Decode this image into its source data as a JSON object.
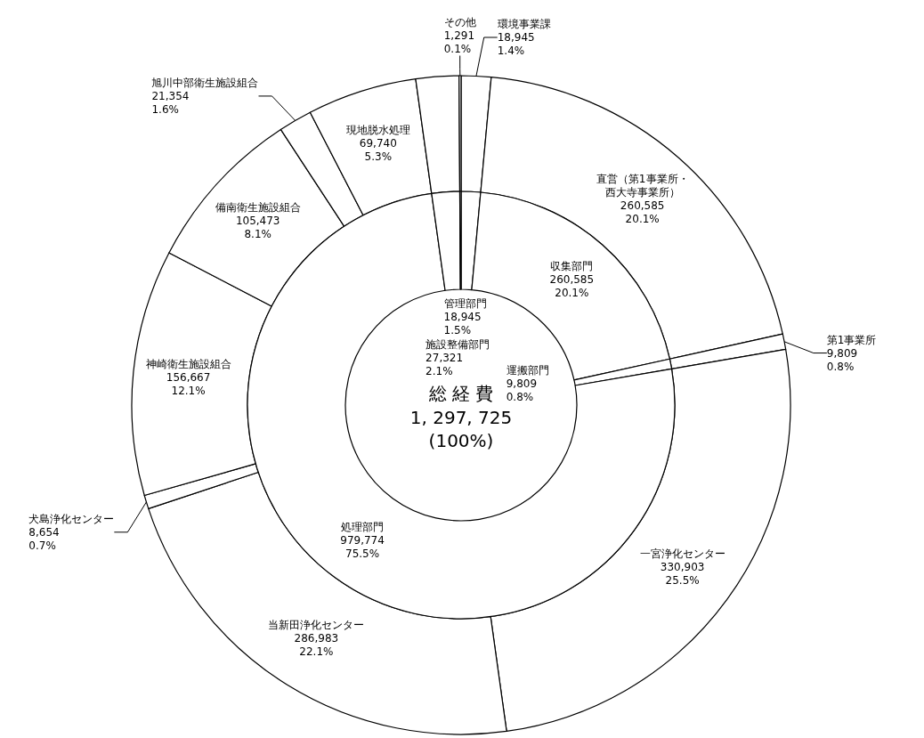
{
  "chart_data": [
    {
      "type": "donut",
      "title": "総 経 費",
      "annotations": [
        "1, 297, 725",
        "(100%)"
      ],
      "categories": [
        "管理部門",
        "収集部門",
        "運搬部門",
        "処理部門",
        "施設整備部門",
        null
      ],
      "values": [
        18945,
        260585,
        9809,
        979774,
        27321,
        1291
      ],
      "colors": [
        "#ffffff",
        "#ffffff",
        "#ffffff",
        "#ffffff",
        "#ffffff",
        "#ffffff"
      ],
      "value_labels": [
        "18,945\n1.5%",
        "260,585\n20.1%",
        "9,809\n0.8%",
        "979,774\n75.5%",
        "27,321\n2.1%",
        null
      ]
    },
    {
      "type": "donut",
      "categories": [
        "環境事業課",
        "直営（第1事業所・西大寺事業所）",
        "第1事業所",
        "一宮浄化センター",
        "当新田浄化センター",
        "犬島浄化センター",
        "神崎衛生施設組合",
        "備南衛生施設組合",
        "旭川中部衛生施設組合",
        "現地脱水処理",
        null,
        "その他"
      ],
      "values": [
        18945,
        260585,
        9809,
        330903,
        286983,
        8654,
        156667,
        105473,
        21354,
        69740,
        27321,
        1291
      ],
      "colors": [
        "#ffffff",
        "#ffffff",
        "#ffffff",
        "#ffffff",
        "#ffffff",
        "#ffffff",
        "#ffffff",
        "#ffffff",
        "#ffffff",
        "#ffffff",
        "#ffffff",
        "#ffffff"
      ],
      "value_labels": [
        "18,945\n1.4%",
        "260,585\n20.1%",
        "9,809\n0.8%",
        "330,903\n25.5%",
        "286,983\n22.1%",
        "8,654\n0.7%",
        "156,667\n12.1%",
        "105,473\n8.1%",
        "21,354\n1.6%",
        "69,740\n5.3%",
        null,
        "1,291\n0.1%"
      ]
    }
  ]
}
